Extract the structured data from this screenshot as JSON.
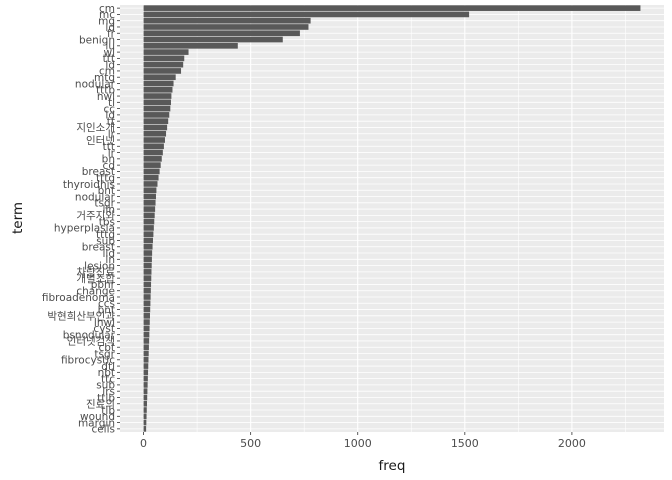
{
  "chart_data": {
    "type": "bar",
    "orientation": "horizontal",
    "xlabel": "freq",
    "ylabel": "term",
    "xlim": [
      -110,
      2430
    ],
    "xticks": [
      0,
      500,
      1000,
      1500,
      2000
    ],
    "grid": true,
    "legend": "none",
    "bar_color": "#595959",
    "panel_color": "#ebebeb",
    "categories": [
      "cm",
      "mc",
      "mg",
      "ld",
      "fr",
      "benign",
      "lu",
      "wl",
      "ttt",
      "ld",
      "cm",
      "mtg",
      "nodular",
      "tttb",
      "nwl",
      "tl",
      "cc",
      "ld",
      "tt",
      "지인소개",
      "lr",
      "인터넷",
      "ttt",
      "lr",
      "bn",
      "cd",
      "breast",
      "tttg",
      "thyroidhis",
      "bnt",
      "nodular",
      "tsgr",
      "lln",
      "거주지와",
      "tbs",
      "hyperplasia",
      "tttg",
      "sub",
      "breast",
      "lld",
      "ln",
      "lesion",
      "차량진료",
      "개별조합",
      "pbhr",
      "change",
      "fibroadenoma",
      "ccs",
      "bnt",
      "박현희산부인과",
      "lnwl",
      "cyst",
      "bsnodular",
      "인터넷검색",
      "cbt",
      "tsgr",
      "fibrocystic",
      "dtl",
      "nbt",
      "ttc",
      "sub",
      "lrs",
      "ttlb",
      "진료의",
      "tlb",
      "wound",
      "margin",
      "cells"
    ],
    "values": [
      2320,
      1520,
      780,
      770,
      730,
      650,
      440,
      210,
      190,
      185,
      175,
      150,
      140,
      135,
      130,
      128,
      125,
      120,
      115,
      110,
      105,
      100,
      95,
      90,
      85,
      80,
      75,
      70,
      65,
      60,
      58,
      56,
      54,
      52,
      50,
      48,
      46,
      44,
      42,
      40,
      39,
      38,
      37,
      36,
      35,
      34,
      33,
      32,
      31,
      30,
      29,
      28,
      27,
      26,
      25,
      24,
      23,
      22,
      21,
      20,
      19,
      18,
      17,
      16,
      15,
      14,
      13,
      12
    ]
  }
}
